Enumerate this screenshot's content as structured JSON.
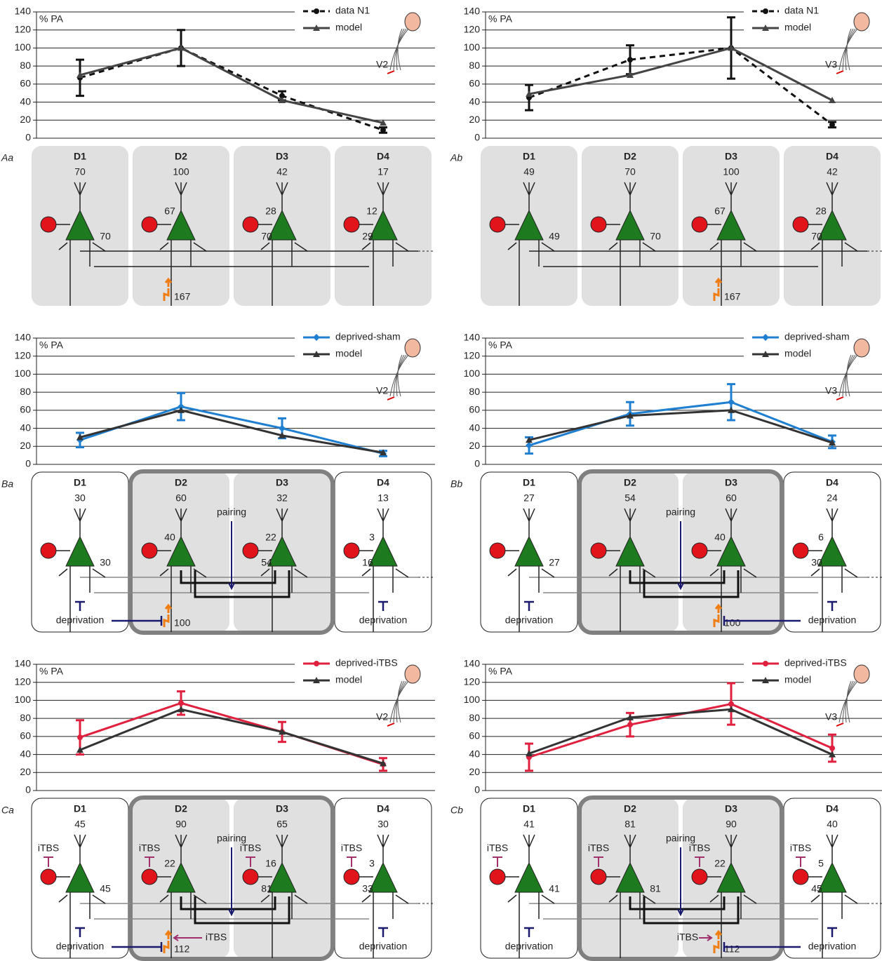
{
  "chart_data": [
    {
      "type": "line",
      "ylabel": "% PA",
      "annotation": "V2",
      "categories": [
        null,
        null,
        null,
        null
      ],
      "ylim": [
        0,
        140
      ],
      "yticks": [
        0,
        20,
        40,
        60,
        80,
        100,
        120,
        140
      ],
      "grid": true,
      "legend": "upper right",
      "series": [
        {
          "name": "data N1",
          "color": "#111111",
          "dashed": true,
          "marker": "circle",
          "values": [
            67,
            100,
            47,
            9
          ],
          "errors": [
            20,
            20,
            5,
            3
          ]
        },
        {
          "name": "model",
          "color": "#444444",
          "marker": "triangle",
          "values": [
            70,
            100,
            42,
            17
          ]
        }
      ]
    },
    {
      "type": "line",
      "ylabel": "% PA",
      "annotation": "V3",
      "categories": [
        null,
        null,
        null,
        null
      ],
      "ylim": [
        0,
        140
      ],
      "yticks": [
        0,
        20,
        40,
        60,
        80,
        100,
        120,
        140
      ],
      "grid": true,
      "legend": "upper right",
      "series": [
        {
          "name": "data N1",
          "color": "#111111",
          "dashed": true,
          "marker": "circle",
          "values": [
            45,
            87,
            100,
            15
          ],
          "errors": [
            14,
            16,
            34,
            3
          ]
        },
        {
          "name": "model",
          "color": "#444444",
          "marker": "triangle",
          "values": [
            49,
            70,
            100,
            42
          ]
        }
      ]
    },
    {
      "type": "line",
      "ylabel": "% PA",
      "annotation": "V2",
      "categories": [
        null,
        null,
        null,
        null
      ],
      "ylim": [
        0,
        140
      ],
      "yticks": [
        0,
        20,
        40,
        60,
        80,
        100,
        120,
        140
      ],
      "grid": true,
      "legend": "upper right",
      "series": [
        {
          "name": "deprived-sham",
          "color": "#1f7fd0",
          "marker": "diamond",
          "values": [
            27,
            64,
            40,
            12
          ],
          "errors": [
            8,
            15,
            11,
            3
          ]
        },
        {
          "name": "model",
          "color": "#333333",
          "marker": "triangle",
          "values": [
            30,
            60,
            32,
            13
          ]
        }
      ]
    },
    {
      "type": "line",
      "ylabel": "% PA",
      "annotation": "V3",
      "categories": [
        null,
        null,
        null,
        null
      ],
      "ylim": [
        0,
        140
      ],
      "yticks": [
        0,
        20,
        40,
        60,
        80,
        100,
        120,
        140
      ],
      "grid": true,
      "legend": "upper right",
      "series": [
        {
          "name": "deprived-sham",
          "color": "#1f7fd0",
          "marker": "diamond",
          "values": [
            21,
            56,
            69,
            25
          ],
          "errors": [
            9,
            13,
            20,
            7
          ]
        },
        {
          "name": "model",
          "color": "#333333",
          "marker": "triangle",
          "values": [
            27,
            54,
            60,
            24
          ]
        }
      ]
    },
    {
      "type": "line",
      "ylabel": "% PA",
      "annotation": "V2",
      "categories": [
        null,
        null,
        null,
        null
      ],
      "ylim": [
        0,
        140
      ],
      "yticks": [
        0,
        20,
        40,
        60,
        80,
        100,
        120,
        140
      ],
      "grid": true,
      "legend": "upper right",
      "series": [
        {
          "name": "deprived-iTBS",
          "color": "#e0203f",
          "marker": "circle",
          "values": [
            59,
            97,
            65,
            29
          ],
          "errors": [
            19,
            13,
            11,
            7
          ]
        },
        {
          "name": "model",
          "color": "#333333",
          "marker": "triangle",
          "values": [
            45,
            90,
            65,
            30
          ]
        }
      ]
    },
    {
      "type": "line",
      "ylabel": "% PA",
      "annotation": "V3",
      "categories": [
        null,
        null,
        null,
        null
      ],
      "ylim": [
        0,
        140
      ],
      "yticks": [
        0,
        20,
        40,
        60,
        80,
        100,
        120,
        140
      ],
      "grid": true,
      "legend": "upper right",
      "series": [
        {
          "name": "deprived-iTBS",
          "color": "#e0203f",
          "marker": "circle",
          "values": [
            37,
            73,
            96,
            47
          ],
          "errors": [
            15,
            13,
            23,
            15
          ]
        },
        {
          "name": "model",
          "color": "#333333",
          "marker": "triangle",
          "values": [
            41,
            81,
            90,
            40
          ]
        }
      ]
    }
  ],
  "diagrams": [
    {
      "label": "Aa",
      "columns": [
        {
          "name": "D1",
          "top": 70,
          "exc": 70,
          "fill": "#e0e0e0"
        },
        {
          "name": "D2",
          "top": 100,
          "inhib": 67,
          "stim": 167,
          "fill": "#e0e0e0"
        },
        {
          "name": "D3",
          "top": 42,
          "inhib": 28,
          "exc": 70,
          "fill": "#e0e0e0"
        },
        {
          "name": "D4",
          "top": 17,
          "inhib": 12,
          "exc": 29,
          "fill": "#e0e0e0"
        }
      ]
    },
    {
      "label": "Ab",
      "columns": [
        {
          "name": "D1",
          "top": 49,
          "exc": 49,
          "fill": "#e0e0e0"
        },
        {
          "name": "D2",
          "top": 70,
          "exc": 70,
          "fill": "#e0e0e0"
        },
        {
          "name": "D3",
          "top": 100,
          "inhib": 67,
          "stim": 167,
          "fill": "#e0e0e0"
        },
        {
          "name": "D4",
          "top": 42,
          "inhib": 28,
          "exc": 70,
          "fill": "#e0e0e0"
        }
      ]
    },
    {
      "label": "Ba",
      "pairing": "pairing",
      "columns": [
        {
          "name": "D1",
          "top": 30,
          "exc": 30,
          "fill": "#ffffff",
          "deprivation": "deprivation"
        },
        {
          "name": "D2",
          "top": 60,
          "inhib": 40,
          "stim": 100,
          "fill": "#e0e0e0"
        },
        {
          "name": "D3",
          "top": 32,
          "inhib": 22,
          "exc": 54,
          "fill": "#e0e0e0"
        },
        {
          "name": "D4",
          "top": 13,
          "inhib": 3,
          "exc": 16,
          "fill": "#ffffff",
          "deprivation": "deprivation"
        }
      ]
    },
    {
      "label": "Bb",
      "pairing": "pairing",
      "columns": [
        {
          "name": "D1",
          "top": 27,
          "exc": 27,
          "fill": "#ffffff",
          "deprivation": "deprivation"
        },
        {
          "name": "D2",
          "top": 54,
          "fill": "#e0e0e0"
        },
        {
          "name": "D3",
          "top": 60,
          "inhib": 40,
          "stim": 100,
          "fill": "#e0e0e0"
        },
        {
          "name": "D4",
          "top": 24,
          "inhib": 6,
          "exc": 30,
          "fill": "#ffffff",
          "deprivation": "deprivation"
        }
      ]
    },
    {
      "label": "Ca",
      "pairing": "pairing",
      "columns": [
        {
          "name": "D1",
          "top": 45,
          "exc": 45,
          "fill": "#ffffff",
          "deprivation": "deprivation",
          "itbs": "iTBS"
        },
        {
          "name": "D2",
          "top": 90,
          "inhib": 22,
          "stim": 112,
          "stim_itbs": "iTBS",
          "fill": "#e0e0e0",
          "itbs": "iTBS"
        },
        {
          "name": "D3",
          "top": 65,
          "inhib": 16,
          "exc": 81,
          "fill": "#e0e0e0",
          "itbs": "iTBS"
        },
        {
          "name": "D4",
          "top": 30,
          "inhib": 3,
          "exc": 33,
          "fill": "#ffffff",
          "deprivation": "deprivation",
          "itbs": "iTBS"
        }
      ]
    },
    {
      "label": "Cb",
      "pairing": "pairing",
      "columns": [
        {
          "name": "D1",
          "top": 41,
          "exc": 41,
          "fill": "#ffffff",
          "deprivation": "deprivation",
          "itbs": "iTBS"
        },
        {
          "name": "D2",
          "top": 81,
          "exc": 81,
          "fill": "#e0e0e0",
          "itbs": "iTBS"
        },
        {
          "name": "D3",
          "top": 90,
          "inhib": 22,
          "stim": 112,
          "stim_itbs": "iTBS",
          "fill": "#e0e0e0",
          "itbs": "iTBS"
        },
        {
          "name": "D4",
          "top": 40,
          "inhib": 5,
          "exc": 45,
          "fill": "#ffffff",
          "deprivation": "deprivation",
          "itbs": "iTBS"
        }
      ]
    }
  ]
}
